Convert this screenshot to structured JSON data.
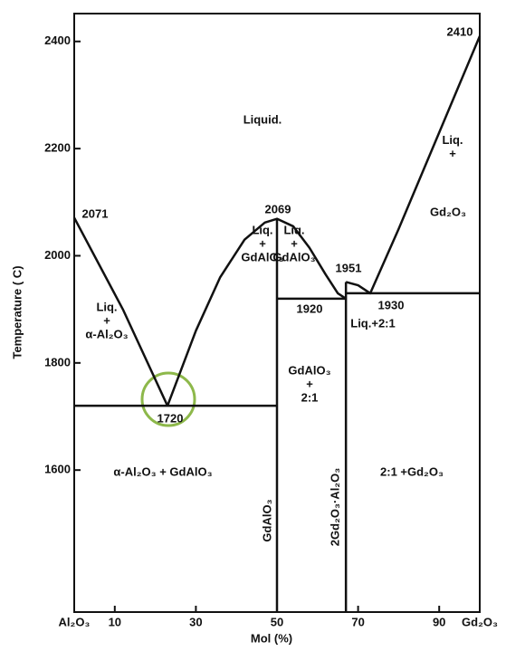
{
  "chart_data": {
    "type": "line",
    "xlabel": "Mol (%)",
    "ylabel": "Temperature ( C)",
    "xlim": [
      0,
      100
    ],
    "ylim": [
      1335,
      2452
    ],
    "xticks": [
      {
        "value": 0,
        "label": "Al₂O₃"
      },
      10,
      30,
      50,
      70,
      90,
      {
        "value": 100,
        "label": "Gd₂O₃"
      }
    ],
    "yticks": [
      1600,
      1800,
      2000,
      2200,
      2400
    ],
    "series": [
      {
        "color": "#111111",
        "x": [
          0,
          12,
          23
        ],
        "values": [
          2071,
          1900,
          1720
        ]
      },
      {
        "color": "#111111",
        "x": [
          23,
          30,
          36,
          42,
          47,
          50,
          54,
          58,
          62,
          65,
          67
        ],
        "values": [
          1720,
          1860,
          1960,
          2030,
          2062,
          2069,
          2055,
          2015,
          1965,
          1930,
          1920
        ]
      },
      {
        "color": "#111111",
        "x": [
          67,
          70,
          73,
          80,
          90,
          100
        ],
        "values": [
          1951,
          1945,
          1930,
          2050,
          2230,
          2410
        ]
      },
      {
        "color": "#111111",
        "x": [
          0,
          50
        ],
        "values": [
          1720,
          1720
        ]
      },
      {
        "color": "#111111",
        "x": [
          50,
          67
        ],
        "values": [
          1920,
          1920
        ]
      },
      {
        "color": "#111111",
        "x": [
          67,
          100
        ],
        "values": [
          1930,
          1930
        ]
      },
      {
        "color": "#111111",
        "x": [
          50,
          50
        ],
        "values": [
          1335,
          2069
        ]
      },
      {
        "color": "#111111",
        "x": [
          67,
          67
        ],
        "values": [
          1335,
          1951
        ]
      }
    ],
    "annotations": [
      [
        "Liquid."
      ],
      [
        "2071"
      ],
      [
        "2069"
      ],
      [
        "2410"
      ],
      [
        "1951"
      ],
      [
        "1930"
      ],
      [
        "1920"
      ],
      [
        "1720"
      ],
      [
        "Liq.",
        "+",
        "α-Al₂O₃"
      ],
      [
        "Liq.",
        "+",
        "GdAlO₃"
      ],
      [
        "Liq.",
        "+",
        "GdAlO₃"
      ],
      [
        "Liq.+2:1"
      ],
      [
        "Liq.",
        "+"
      ],
      [
        "Gd₂O₃"
      ],
      [
        "GdAlO₃",
        "+",
        "2:1"
      ],
      [
        "α-Al₂O₃ + GdAlO₃"
      ],
      [
        "2:1 +Gd₂O₃"
      ],
      [
        "GdAlO₃"
      ],
      [
        "2Gd₂O₃·Al₂O₃"
      ]
    ]
  }
}
